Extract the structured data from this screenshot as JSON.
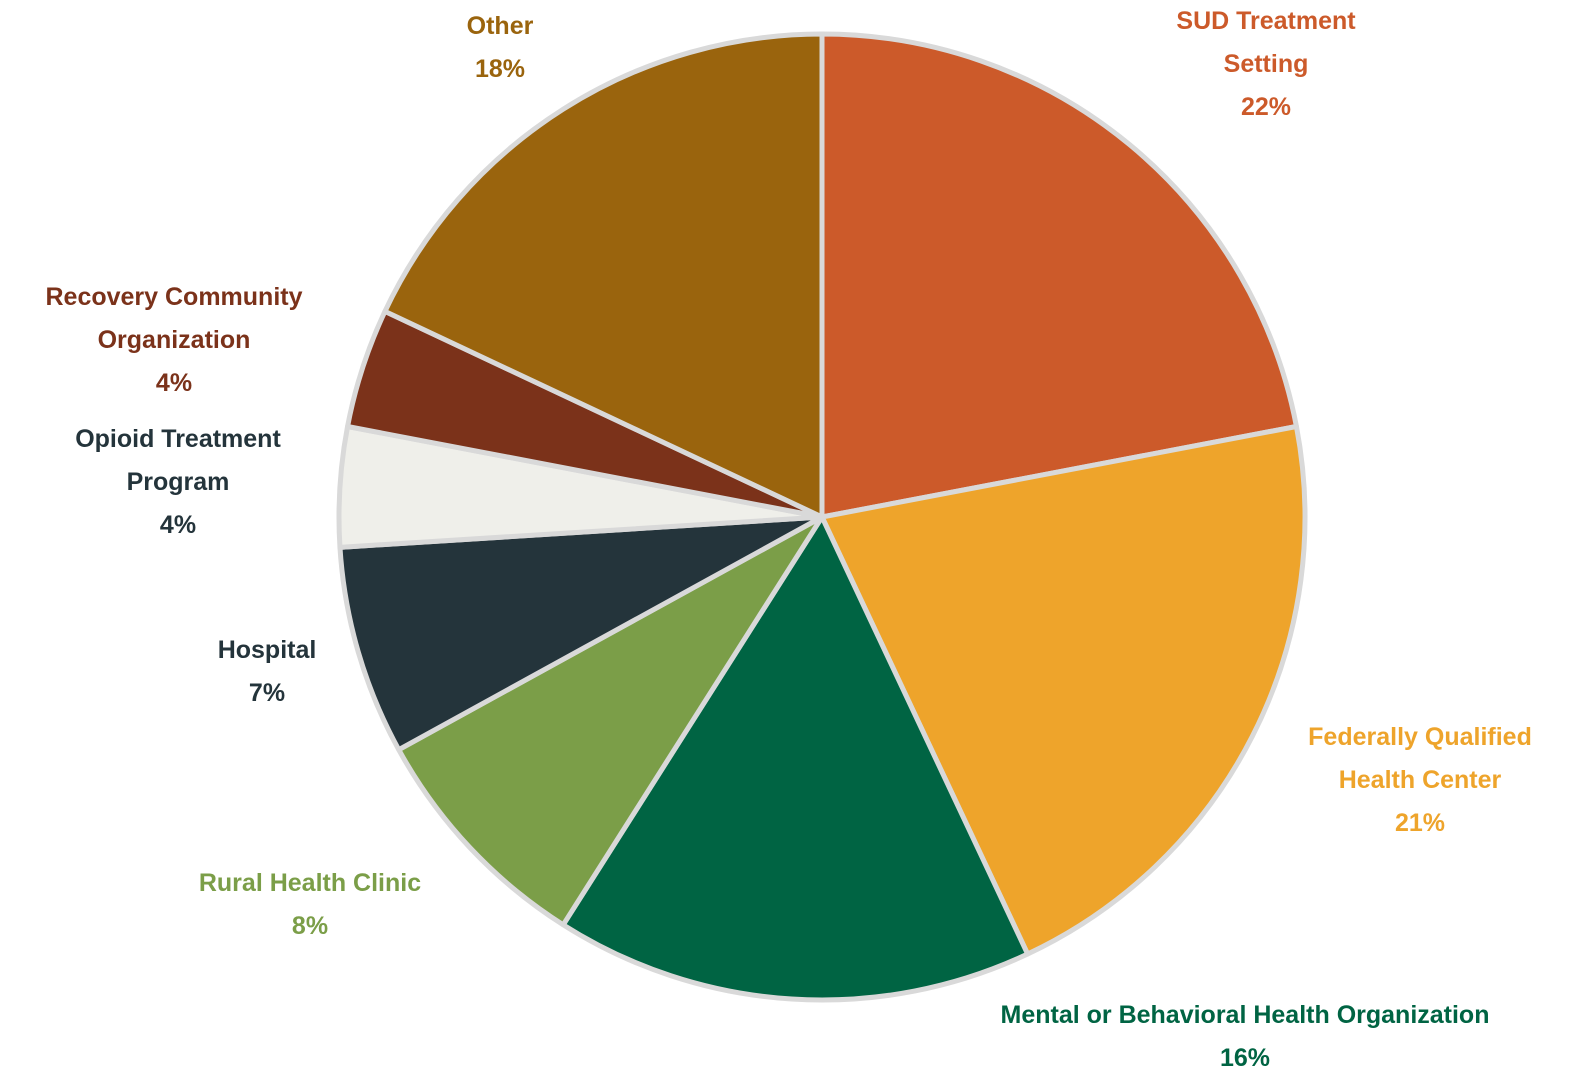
{
  "chart_data": {
    "type": "pie",
    "categories": [
      "SUD Treatment Setting",
      "Federally Qualified Health Center",
      "Mental or Behavioral Health Organization",
      "Rural Health Clinic",
      "Hospital",
      "Opioid Treatment Program",
      "Recovery Community Organization",
      "Other"
    ],
    "values": [
      22,
      21,
      16,
      8,
      7,
      4,
      4,
      18
    ],
    "value_labels": [
      "22%",
      "21%",
      "16%",
      "8%",
      "7%",
      "4%",
      "4%",
      "18%"
    ],
    "colors": [
      "#cc5a2a",
      "#eea42b",
      "#006443",
      "#7b9e48",
      "#24343b",
      "#efefea",
      "#7b321a",
      "#9a640d"
    ],
    "label_colors": [
      "#cc5a2a",
      "#eea42b",
      "#006443",
      "#7b9e48",
      "#24343b",
      "#24343b",
      "#7b321a",
      "#9a640d"
    ]
  }
}
